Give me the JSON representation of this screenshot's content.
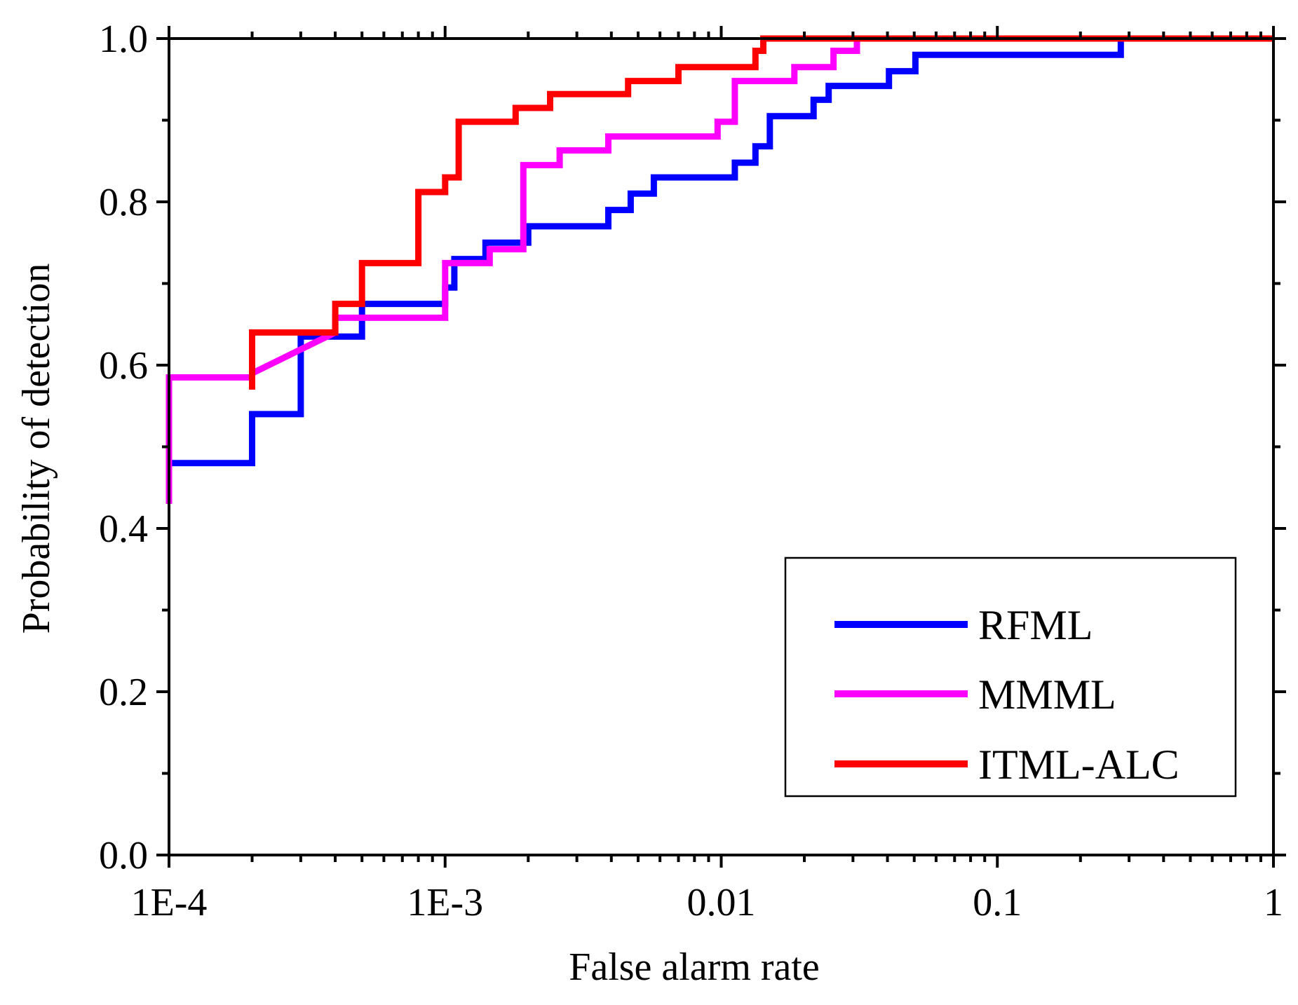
{
  "chart_data": {
    "type": "line",
    "title": "",
    "xlabel": "False alarm rate",
    "ylabel": "Probability of detection",
    "xscale": "log",
    "xlim": [
      0.0001,
      1
    ],
    "ylim": [
      0.0,
      1.0
    ],
    "xticks": [
      {
        "value": 0.0001,
        "label": "1E-4"
      },
      {
        "value": 0.001,
        "label": "1E-3"
      },
      {
        "value": 0.01,
        "label": "0.01"
      },
      {
        "value": 0.1,
        "label": "0.1"
      },
      {
        "value": 1,
        "label": "1"
      }
    ],
    "yticks": [
      {
        "value": 0.0,
        "label": "0.0"
      },
      {
        "value": 0.2,
        "label": "0.2"
      },
      {
        "value": 0.4,
        "label": "0.4"
      },
      {
        "value": 0.6,
        "label": "0.6"
      },
      {
        "value": 0.8,
        "label": "0.8"
      },
      {
        "value": 1.0,
        "label": "1.0"
      }
    ],
    "grid": false,
    "legend_position": "bottom-right",
    "series": [
      {
        "name": "RFML",
        "color": "#0000ff",
        "points": [
          [
            0.0001,
            0.48
          ],
          [
            0.0002,
            0.48
          ],
          [
            0.0002,
            0.54
          ],
          [
            0.0003,
            0.54
          ],
          [
            0.0003,
            0.635
          ],
          [
            0.0005,
            0.635
          ],
          [
            0.0005,
            0.675
          ],
          [
            0.001,
            0.675
          ],
          [
            0.001,
            0.695
          ],
          [
            0.00108,
            0.695
          ],
          [
            0.00108,
            0.73
          ],
          [
            0.0014,
            0.73
          ],
          [
            0.0014,
            0.75
          ],
          [
            0.002,
            0.75
          ],
          [
            0.002,
            0.77
          ],
          [
            0.0039,
            0.77
          ],
          [
            0.0039,
            0.79
          ],
          [
            0.0047,
            0.79
          ],
          [
            0.0047,
            0.81
          ],
          [
            0.0057,
            0.81
          ],
          [
            0.0057,
            0.83
          ],
          [
            0.0112,
            0.83
          ],
          [
            0.0112,
            0.848
          ],
          [
            0.0133,
            0.848
          ],
          [
            0.0133,
            0.868
          ],
          [
            0.015,
            0.868
          ],
          [
            0.015,
            0.905
          ],
          [
            0.0216,
            0.905
          ],
          [
            0.0216,
            0.925
          ],
          [
            0.0245,
            0.925
          ],
          [
            0.0245,
            0.942
          ],
          [
            0.0405,
            0.942
          ],
          [
            0.0405,
            0.96
          ],
          [
            0.0505,
            0.96
          ],
          [
            0.0505,
            0.98
          ],
          [
            0.28,
            0.98
          ],
          [
            0.28,
            1.0
          ],
          [
            1,
            1.0
          ]
        ]
      },
      {
        "name": "MMML",
        "color": "#ff00ff",
        "points": [
          [
            0.0001,
            0.43
          ],
          [
            0.0001,
            0.585
          ],
          [
            0.0002,
            0.585
          ],
          [
            0.0002,
            0.59
          ],
          [
            0.0004,
            0.64
          ],
          [
            0.0004,
            0.658
          ],
          [
            0.001,
            0.658
          ],
          [
            0.001,
            0.725
          ],
          [
            0.00145,
            0.725
          ],
          [
            0.00145,
            0.742
          ],
          [
            0.00192,
            0.742
          ],
          [
            0.00192,
            0.845
          ],
          [
            0.0026,
            0.845
          ],
          [
            0.0026,
            0.863
          ],
          [
            0.0039,
            0.863
          ],
          [
            0.0039,
            0.88
          ],
          [
            0.0097,
            0.88
          ],
          [
            0.0097,
            0.898
          ],
          [
            0.0112,
            0.898
          ],
          [
            0.0112,
            0.948
          ],
          [
            0.0184,
            0.948
          ],
          [
            0.0184,
            0.965
          ],
          [
            0.0255,
            0.965
          ],
          [
            0.0255,
            0.985
          ],
          [
            0.031,
            0.985
          ],
          [
            0.031,
            1.0
          ],
          [
            1,
            1.0
          ]
        ]
      },
      {
        "name": "ITML-ALC",
        "color": "#ff0000",
        "points": [
          [
            0.0002,
            0.57
          ],
          [
            0.0002,
            0.64
          ],
          [
            0.0004,
            0.64
          ],
          [
            0.0004,
            0.675
          ],
          [
            0.0005,
            0.675
          ],
          [
            0.0005,
            0.725
          ],
          [
            0.0008,
            0.725
          ],
          [
            0.0008,
            0.812
          ],
          [
            0.001,
            0.812
          ],
          [
            0.001,
            0.83
          ],
          [
            0.00112,
            0.83
          ],
          [
            0.00112,
            0.898
          ],
          [
            0.0018,
            0.898
          ],
          [
            0.0018,
            0.915
          ],
          [
            0.0024,
            0.915
          ],
          [
            0.0024,
            0.932
          ],
          [
            0.0046,
            0.932
          ],
          [
            0.0046,
            0.948
          ],
          [
            0.007,
            0.948
          ],
          [
            0.007,
            0.965
          ],
          [
            0.0133,
            0.965
          ],
          [
            0.0133,
            0.985
          ],
          [
            0.0142,
            0.985
          ],
          [
            0.0142,
            1.0
          ],
          [
            1,
            1.0
          ]
        ]
      }
    ]
  }
}
